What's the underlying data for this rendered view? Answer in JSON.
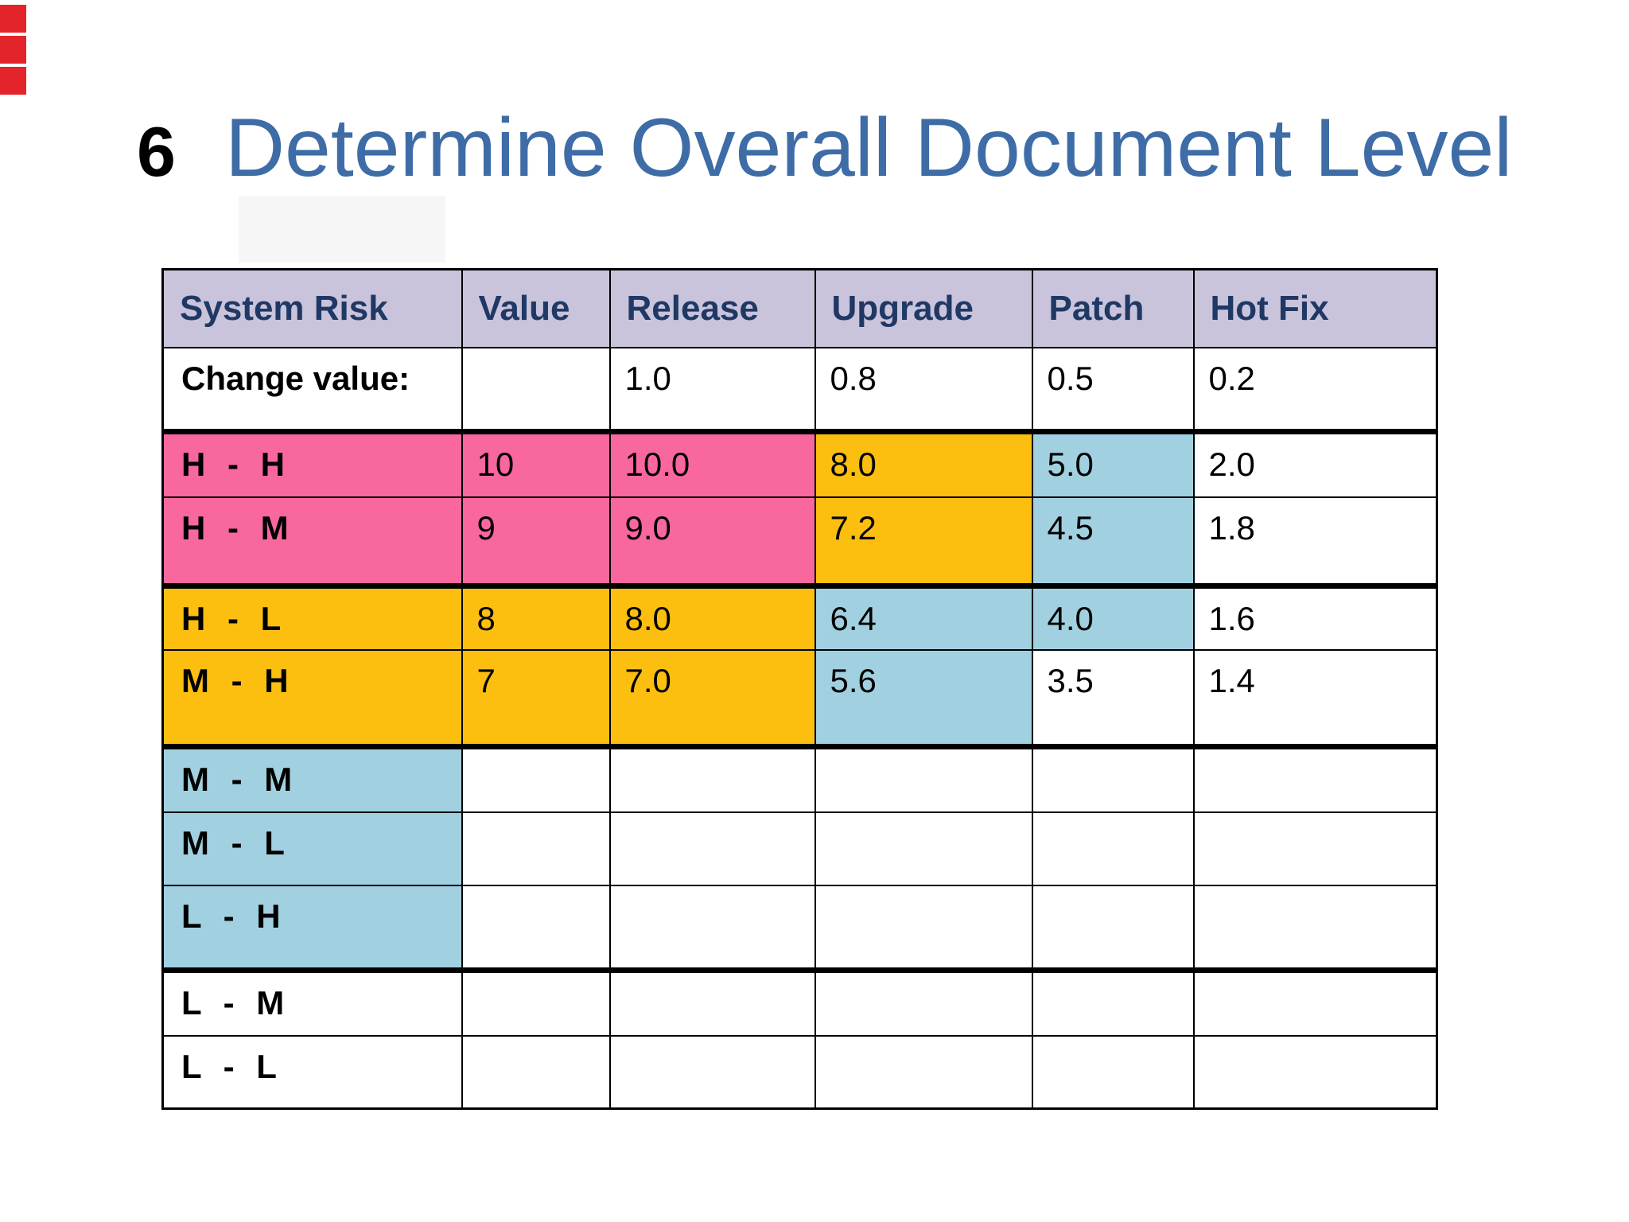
{
  "slide": {
    "number": "6",
    "title": "Determine Overall Document Level"
  },
  "colors": {
    "red_marker": "#E3242B",
    "header_bg": "#C9C3DC",
    "header_text": "#1F3864",
    "title_text": "#3E6CA6",
    "pink": "#F9679F",
    "orange": "#FCBF10",
    "blue": "#A1D1E1",
    "white": "#FFFFFF",
    "border": "#000000"
  },
  "table": {
    "headers": [
      "System Risk",
      "Value",
      "Release",
      "Upgrade",
      "Patch",
      "Hot Fix"
    ],
    "rows": [
      {
        "thick_bottom": true,
        "cells": [
          {
            "t": "Change value:",
            "bg": "white"
          },
          {
            "t": "",
            "bg": "white"
          },
          {
            "t": "1.0",
            "bg": "white"
          },
          {
            "t": "0.8",
            "bg": "white"
          },
          {
            "t": "0.5",
            "bg": "white"
          },
          {
            "t": "0.2",
            "bg": "white"
          }
        ]
      },
      {
        "thick_bottom": false,
        "cells": [
          {
            "t": "H - H",
            "bg": "pink"
          },
          {
            "t": "10",
            "bg": "pink"
          },
          {
            "t": "10.0",
            "bg": "pink"
          },
          {
            "t": "8.0",
            "bg": "orange"
          },
          {
            "t": "5.0",
            "bg": "blue"
          },
          {
            "t": "2.0",
            "bg": "white"
          }
        ]
      },
      {
        "thick_bottom": true,
        "cells": [
          {
            "t": "H - M",
            "bg": "pink"
          },
          {
            "t": "9",
            "bg": "pink"
          },
          {
            "t": "9.0",
            "bg": "pink"
          },
          {
            "t": "7.2",
            "bg": "orange"
          },
          {
            "t": "4.5",
            "bg": "blue"
          },
          {
            "t": "1.8",
            "bg": "white"
          }
        ]
      },
      {
        "thick_bottom": false,
        "cells": [
          {
            "t": "H - L",
            "bg": "orange"
          },
          {
            "t": "8",
            "bg": "orange"
          },
          {
            "t": "8.0",
            "bg": "orange"
          },
          {
            "t": "6.4",
            "bg": "blue"
          },
          {
            "t": "4.0",
            "bg": "blue"
          },
          {
            "t": "1.6",
            "bg": "white"
          }
        ]
      },
      {
        "thick_bottom": true,
        "cells": [
          {
            "t": "M - H",
            "bg": "orange"
          },
          {
            "t": "7",
            "bg": "orange"
          },
          {
            "t": "7.0",
            "bg": "orange"
          },
          {
            "t": "5.6",
            "bg": "blue"
          },
          {
            "t": "3.5",
            "bg": "white"
          },
          {
            "t": "1.4",
            "bg": "white"
          }
        ]
      },
      {
        "thick_bottom": false,
        "cells": [
          {
            "t": "M - M",
            "bg": "blue"
          },
          {
            "t": "",
            "bg": "white"
          },
          {
            "t": "",
            "bg": "white"
          },
          {
            "t": "",
            "bg": "white"
          },
          {
            "t": "",
            "bg": "white"
          },
          {
            "t": "",
            "bg": "white"
          }
        ]
      },
      {
        "thick_bottom": false,
        "cells": [
          {
            "t": "M - L",
            "bg": "blue"
          },
          {
            "t": "",
            "bg": "white"
          },
          {
            "t": "",
            "bg": "white"
          },
          {
            "t": "",
            "bg": "white"
          },
          {
            "t": "",
            "bg": "white"
          },
          {
            "t": "",
            "bg": "white"
          }
        ]
      },
      {
        "thick_bottom": true,
        "cells": [
          {
            "t": "L - H",
            "bg": "blue"
          },
          {
            "t": "",
            "bg": "white"
          },
          {
            "t": "",
            "bg": "white"
          },
          {
            "t": "",
            "bg": "white"
          },
          {
            "t": "",
            "bg": "white"
          },
          {
            "t": "",
            "bg": "white"
          }
        ]
      },
      {
        "thick_bottom": false,
        "cells": [
          {
            "t": "L - M",
            "bg": "white"
          },
          {
            "t": "",
            "bg": "white"
          },
          {
            "t": "",
            "bg": "white"
          },
          {
            "t": "",
            "bg": "white"
          },
          {
            "t": "",
            "bg": "white"
          },
          {
            "t": "",
            "bg": "white"
          }
        ]
      },
      {
        "thick_bottom": false,
        "cells": [
          {
            "t": "L - L",
            "bg": "white"
          },
          {
            "t": "",
            "bg": "white"
          },
          {
            "t": "",
            "bg": "white"
          },
          {
            "t": "",
            "bg": "white"
          },
          {
            "t": "",
            "bg": "white"
          },
          {
            "t": "",
            "bg": "white"
          }
        ]
      }
    ]
  }
}
